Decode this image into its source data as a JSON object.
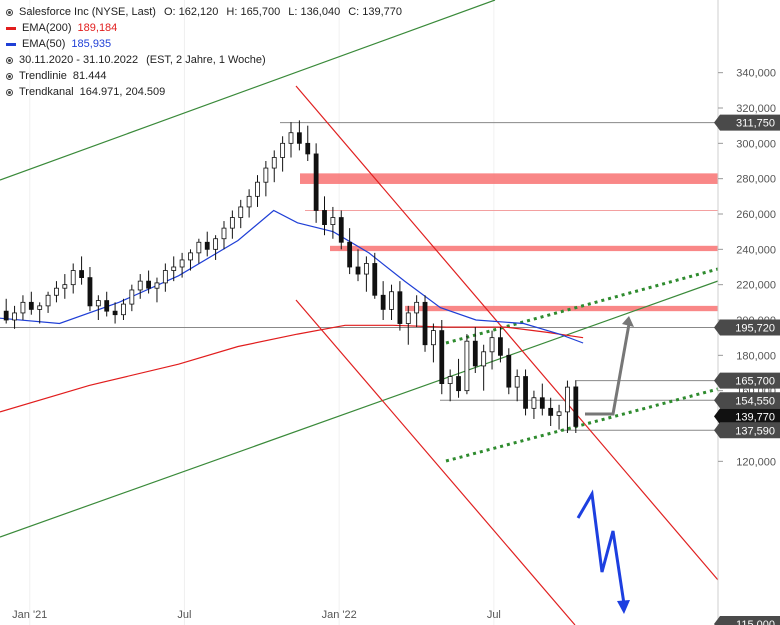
{
  "legend": {
    "title": "Salesforce Inc (NYSE, Last)",
    "ohlc": {
      "o": "O: 162,120",
      "h": "H: 165,700",
      "l": "L: 136,040",
      "c": "C: 139,770"
    },
    "ema200": {
      "label": "EMA(200)",
      "value": "189,184",
      "color": "#e11d1d"
    },
    "ema50": {
      "label": "EMA(50)",
      "value": "185,935",
      "color": "#1f3fd6"
    },
    "range": {
      "label": "30.11.2020 - 31.10.2022",
      "extra": "(EST, 2 Jahre, 1 Woche)"
    },
    "trendlinie": {
      "label": "Trendlinie",
      "value": "81.444"
    },
    "trendkanal": {
      "label": "Trendkanal",
      "value": "164.971, 204.509"
    }
  },
  "chart_data": {
    "type": "candlestick",
    "y_axis": {
      "ticks": [
        340000,
        320000,
        300000,
        280000,
        260000,
        240000,
        220000,
        200000,
        180000,
        160000,
        120000
      ],
      "tick_labels": [
        "340,000",
        "320,000",
        "300,000",
        "280,000",
        "260,000",
        "240,000",
        "220,000",
        "200,000",
        "180,000",
        "160,000",
        "120,000"
      ],
      "range": [
        112000,
        350000
      ]
    },
    "x_axis": {
      "tick_labels": [
        "Jan '21",
        "Jul",
        "Jan '22",
        "Jul"
      ],
      "tick_weeks": [
        5,
        31,
        57,
        83
      ]
    },
    "weeks_total": 102,
    "price_markers": [
      {
        "label": "311,750",
        "value": 311750,
        "style": "dark"
      },
      {
        "label": "195,720",
        "value": 195720,
        "style": "dark"
      },
      {
        "label": "165,700",
        "value": 165700,
        "style": "dark"
      },
      {
        "label": "154,550",
        "value": 154550,
        "style": "dark"
      },
      {
        "label": "139,770",
        "value": 139770,
        "style": "black"
      },
      {
        "label": "137,590",
        "value": 137590,
        "style": "dark"
      },
      {
        "label": "115,000",
        "value": 115000,
        "style": "dark"
      }
    ],
    "horizontal_lines": [
      311750,
      195720,
      165700,
      154550,
      137590,
      262000
    ],
    "resistance_zones": [
      {
        "from": 277000,
        "to": 283000
      },
      {
        "from": 239000,
        "to": 242000
      },
      {
        "from": 205000,
        "to": 208000
      }
    ],
    "ema50": [
      [
        0,
        201000
      ],
      [
        10,
        198000
      ],
      [
        20,
        210000
      ],
      [
        30,
        225000
      ],
      [
        40,
        245000
      ],
      [
        46,
        262000
      ],
      [
        50,
        255000
      ],
      [
        56,
        250000
      ],
      [
        62,
        238000
      ],
      [
        68,
        222000
      ],
      [
        74,
        207000
      ],
      [
        80,
        200000
      ],
      [
        88,
        198000
      ],
      [
        94,
        192000
      ],
      [
        98,
        187000
      ]
    ],
    "ema200": [
      [
        0,
        148000
      ],
      [
        15,
        163000
      ],
      [
        30,
        175000
      ],
      [
        40,
        185000
      ],
      [
        50,
        192000
      ],
      [
        58,
        197000
      ],
      [
        66,
        197000
      ],
      [
        75,
        196000
      ],
      [
        85,
        196000
      ],
      [
        92,
        193000
      ],
      [
        98,
        190000
      ]
    ],
    "candles": [
      [
        205000,
        212000,
        198000,
        200000
      ],
      [
        200000,
        208000,
        195000,
        204000
      ],
      [
        204000,
        214000,
        200000,
        210000
      ],
      [
        210000,
        216000,
        203000,
        206000
      ],
      [
        206000,
        210000,
        198000,
        208000
      ],
      [
        208000,
        216000,
        204000,
        214000
      ],
      [
        214000,
        222000,
        210000,
        218000
      ],
      [
        218000,
        226000,
        212000,
        220000
      ],
      [
        220000,
        232000,
        215000,
        228000
      ],
      [
        228000,
        236000,
        220000,
        224000
      ],
      [
        224000,
        230000,
        205000,
        208000
      ],
      [
        208000,
        214000,
        200000,
        211000
      ],
      [
        211000,
        216000,
        202000,
        205000
      ],
      [
        205000,
        210000,
        198000,
        203000
      ],
      [
        203000,
        212000,
        200000,
        209000
      ],
      [
        209000,
        220000,
        205000,
        217000
      ],
      [
        217000,
        226000,
        212000,
        222000
      ],
      [
        222000,
        228000,
        215000,
        218000
      ],
      [
        218000,
        224000,
        210000,
        221000
      ],
      [
        221000,
        232000,
        216000,
        228000
      ],
      [
        228000,
        236000,
        222000,
        230000
      ],
      [
        230000,
        238000,
        224000,
        234000
      ],
      [
        234000,
        240000,
        228000,
        238000
      ],
      [
        238000,
        246000,
        232000,
        244000
      ],
      [
        244000,
        250000,
        236000,
        240000
      ],
      [
        240000,
        248000,
        234000,
        246000
      ],
      [
        246000,
        256000,
        240000,
        252000
      ],
      [
        252000,
        262000,
        246000,
        258000
      ],
      [
        258000,
        268000,
        252000,
        264000
      ],
      [
        264000,
        274000,
        258000,
        270000
      ],
      [
        270000,
        282000,
        264000,
        278000
      ],
      [
        278000,
        290000,
        270000,
        286000
      ],
      [
        286000,
        296000,
        278000,
        292000
      ],
      [
        292000,
        304000,
        284000,
        300000
      ],
      [
        300000,
        312000,
        292000,
        306000
      ],
      [
        306000,
        313000,
        296000,
        300000
      ],
      [
        300000,
        310000,
        290000,
        294000
      ],
      [
        294000,
        300000,
        255000,
        262000
      ],
      [
        262000,
        270000,
        248000,
        254000
      ],
      [
        254000,
        264000,
        246000,
        258000
      ],
      [
        258000,
        262000,
        240000,
        244000
      ],
      [
        244000,
        252000,
        226000,
        230000
      ],
      [
        230000,
        240000,
        222000,
        226000
      ],
      [
        226000,
        236000,
        216000,
        232000
      ],
      [
        232000,
        238000,
        212000,
        214000
      ],
      [
        214000,
        222000,
        200000,
        206000
      ],
      [
        206000,
        220000,
        200000,
        216000
      ],
      [
        216000,
        222000,
        194000,
        198000
      ],
      [
        198000,
        208000,
        186000,
        204000
      ],
      [
        204000,
        214000,
        196000,
        210000
      ],
      [
        210000,
        214000,
        182000,
        186000
      ],
      [
        186000,
        198000,
        176000,
        194000
      ],
      [
        194000,
        200000,
        158000,
        164000
      ],
      [
        164000,
        172000,
        154000,
        168000
      ],
      [
        168000,
        178000,
        156000,
        160000
      ],
      [
        160000,
        192000,
        158000,
        188000
      ],
      [
        188000,
        196000,
        170000,
        174000
      ],
      [
        174000,
        186000,
        160000,
        182000
      ],
      [
        182000,
        194000,
        172000,
        190000
      ],
      [
        190000,
        196000,
        176000,
        180000
      ],
      [
        180000,
        184000,
        158000,
        162000
      ],
      [
        162000,
        172000,
        154000,
        168000
      ],
      [
        168000,
        172000,
        146000,
        150000
      ],
      [
        150000,
        160000,
        144000,
        156000
      ],
      [
        156000,
        164000,
        146000,
        150000
      ],
      [
        150000,
        156000,
        140000,
        146000
      ],
      [
        146000,
        152000,
        138000,
        148000
      ],
      [
        148000,
        165700,
        136040,
        162000
      ],
      [
        162120,
        165700,
        136040,
        139770
      ]
    ]
  }
}
